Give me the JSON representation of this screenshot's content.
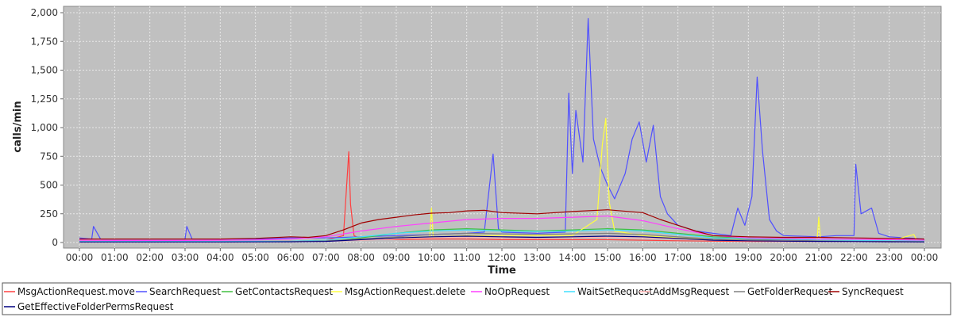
{
  "chart_data": {
    "type": "line",
    "title": "",
    "xlabel": "Time",
    "ylabel": "calls/min",
    "x_ticks": [
      "00:00",
      "01:00",
      "02:00",
      "03:00",
      "04:00",
      "05:00",
      "06:00",
      "07:00",
      "08:00",
      "09:00",
      "10:00",
      "11:00",
      "12:00",
      "13:00",
      "14:00",
      "15:00",
      "16:00",
      "17:00",
      "18:00",
      "19:00",
      "20:00",
      "21:00",
      "22:00",
      "23:00",
      "00:00"
    ],
    "y_ticks": [
      "0",
      "250",
      "500",
      "750",
      "1,000",
      "1,250",
      "1,500",
      "1,750",
      "2,000"
    ],
    "ylim": [
      0,
      2000
    ],
    "grid": true,
    "legend_position": "bottom",
    "series": [
      {
        "name": "MsgActionRequest.move",
        "color": "#ff4040",
        "x": [
          0,
          1,
          2,
          3,
          4,
          5,
          6,
          7,
          7.5,
          7.65,
          7.7,
          7.8,
          8,
          9,
          10,
          11,
          12,
          13,
          14,
          15,
          16,
          17,
          18,
          19,
          20,
          21,
          22,
          23,
          24
        ],
        "y": [
          10,
          8,
          8,
          8,
          9,
          10,
          12,
          20,
          60,
          790,
          330,
          60,
          30,
          25,
          30,
          30,
          25,
          25,
          25,
          25,
          20,
          15,
          12,
          10,
          10,
          10,
          10,
          8,
          8
        ]
      },
      {
        "name": "SearchRequest",
        "color": "#5050ff",
        "x": [
          0,
          0.35,
          0.4,
          0.6,
          1,
          2,
          3,
          3.05,
          3.2,
          4,
          5,
          6,
          7,
          8,
          9,
          10,
          11,
          11.5,
          11.75,
          11.9,
          12,
          13,
          13.8,
          13.9,
          14.0,
          14.1,
          14.3,
          14.45,
          14.6,
          14.8,
          15,
          15.2,
          15.5,
          15.7,
          15.9,
          16.1,
          16.3,
          16.5,
          16.7,
          17,
          17.5,
          18,
          18.5,
          18.7,
          18.9,
          19.1,
          19.25,
          19.4,
          19.6,
          19.8,
          20,
          21,
          21.5,
          22,
          22.05,
          22.2,
          22.5,
          22.7,
          23,
          23.5,
          24
        ],
        "y": [
          40,
          30,
          140,
          30,
          30,
          30,
          30,
          140,
          30,
          30,
          30,
          40,
          40,
          50,
          60,
          70,
          80,
          90,
          770,
          120,
          90,
          80,
          90,
          1300,
          600,
          1150,
          700,
          1950,
          900,
          650,
          500,
          380,
          600,
          900,
          1050,
          700,
          1020,
          400,
          250,
          150,
          100,
          80,
          60,
          300,
          150,
          400,
          1440,
          800,
          200,
          100,
          60,
          50,
          60,
          60,
          680,
          250,
          300,
          80,
          50,
          40,
          30
        ]
      },
      {
        "name": "GetContactsRequest",
        "color": "#40c040",
        "x": [
          0,
          2,
          4,
          6,
          7,
          8,
          9,
          10,
          11,
          12,
          13,
          14,
          15,
          16,
          17,
          18,
          19,
          20,
          21,
          22,
          23,
          24
        ],
        "y": [
          5,
          5,
          5,
          8,
          15,
          40,
          80,
          110,
          120,
          110,
          100,
          110,
          120,
          110,
          80,
          50,
          40,
          30,
          20,
          15,
          10,
          5
        ]
      },
      {
        "name": "MsgActionRequest.delete",
        "color": "#ffff40",
        "x": [
          0,
          2,
          4,
          6,
          7,
          8,
          9,
          9.95,
          10,
          10.05,
          11,
          12,
          13,
          14,
          14.7,
          14.85,
          14.95,
          15.05,
          15.2,
          16,
          17,
          18,
          19,
          20,
          20.95,
          21,
          21.05,
          22,
          23,
          23.7,
          23.8,
          24
        ],
        "y": [
          5,
          5,
          5,
          8,
          20,
          30,
          40,
          50,
          300,
          50,
          60,
          60,
          60,
          60,
          200,
          850,
          1080,
          350,
          100,
          60,
          40,
          30,
          20,
          20,
          20,
          220,
          20,
          15,
          10,
          70,
          10,
          5
        ]
      },
      {
        "name": "NoOpRequest",
        "color": "#ff40ff",
        "x": [
          0,
          1,
          2,
          3,
          4,
          5,
          6,
          7,
          8,
          9,
          10,
          11,
          12,
          13,
          14,
          15,
          16,
          17,
          18,
          19,
          20,
          21,
          22,
          23,
          24
        ],
        "y": [
          20,
          18,
          18,
          18,
          20,
          22,
          30,
          50,
          100,
          140,
          170,
          200,
          210,
          210,
          220,
          230,
          190,
          120,
          60,
          40,
          35,
          30,
          28,
          25,
          20
        ]
      },
      {
        "name": "WaitSetRequest",
        "color": "#40e0ff",
        "x": [
          0,
          2,
          4,
          6,
          7,
          8,
          9,
          10,
          11,
          12,
          13,
          14,
          15,
          16,
          17,
          18,
          19,
          20,
          21,
          22,
          23,
          24
        ],
        "y": [
          10,
          10,
          10,
          12,
          20,
          50,
          80,
          100,
          110,
          100,
          95,
          100,
          110,
          100,
          70,
          40,
          30,
          25,
          20,
          18,
          15,
          12
        ]
      },
      {
        "name": "AddMsgRequest",
        "color": "#ffb0b0",
        "x": [
          0,
          2,
          4,
          6,
          7,
          8,
          9,
          10,
          11,
          12,
          13,
          14,
          15,
          16,
          17,
          18,
          19,
          20,
          21,
          22,
          23,
          24
        ],
        "y": [
          5,
          5,
          5,
          6,
          10,
          20,
          30,
          40,
          45,
          40,
          40,
          45,
          45,
          40,
          30,
          20,
          15,
          12,
          10,
          8,
          6,
          5
        ]
      },
      {
        "name": "GetFolderRequest",
        "color": "#808080",
        "x": [
          0,
          2,
          4,
          6,
          7,
          8,
          9,
          10,
          11,
          12,
          13,
          14,
          15,
          16,
          17,
          18,
          19,
          20,
          21,
          22,
          23,
          24
        ],
        "y": [
          5,
          5,
          5,
          8,
          15,
          30,
          50,
          70,
          80,
          75,
          70,
          75,
          80,
          70,
          50,
          30,
          25,
          20,
          15,
          12,
          10,
          8
        ]
      },
      {
        "name": "SyncRequest",
        "color": "#a00000",
        "x": [
          0,
          1,
          2,
          3,
          4,
          5,
          6,
          6.5,
          7,
          7.5,
          8,
          8.5,
          9,
          9.5,
          10,
          10.5,
          11,
          11.5,
          12,
          13,
          14,
          15,
          16,
          16.5,
          17,
          17.5,
          18,
          19,
          20,
          21,
          22,
          23,
          24
        ],
        "y": [
          30,
          30,
          30,
          30,
          30,
          35,
          50,
          45,
          60,
          110,
          170,
          200,
          220,
          240,
          255,
          260,
          275,
          280,
          260,
          250,
          270,
          285,
          260,
          200,
          150,
          100,
          60,
          50,
          45,
          45,
          40,
          35,
          30
        ]
      },
      {
        "name": "GetEffectiveFolderPermsRequest",
        "color": "#000080",
        "x": [
          0,
          2,
          4,
          6,
          7,
          8,
          9,
          10,
          11,
          12,
          13,
          14,
          15,
          16,
          17,
          18,
          19,
          20,
          21,
          22,
          23,
          24
        ],
        "y": [
          5,
          5,
          5,
          6,
          10,
          25,
          40,
          50,
          55,
          50,
          45,
          50,
          55,
          50,
          35,
          20,
          15,
          12,
          10,
          8,
          6,
          5
        ]
      }
    ]
  }
}
